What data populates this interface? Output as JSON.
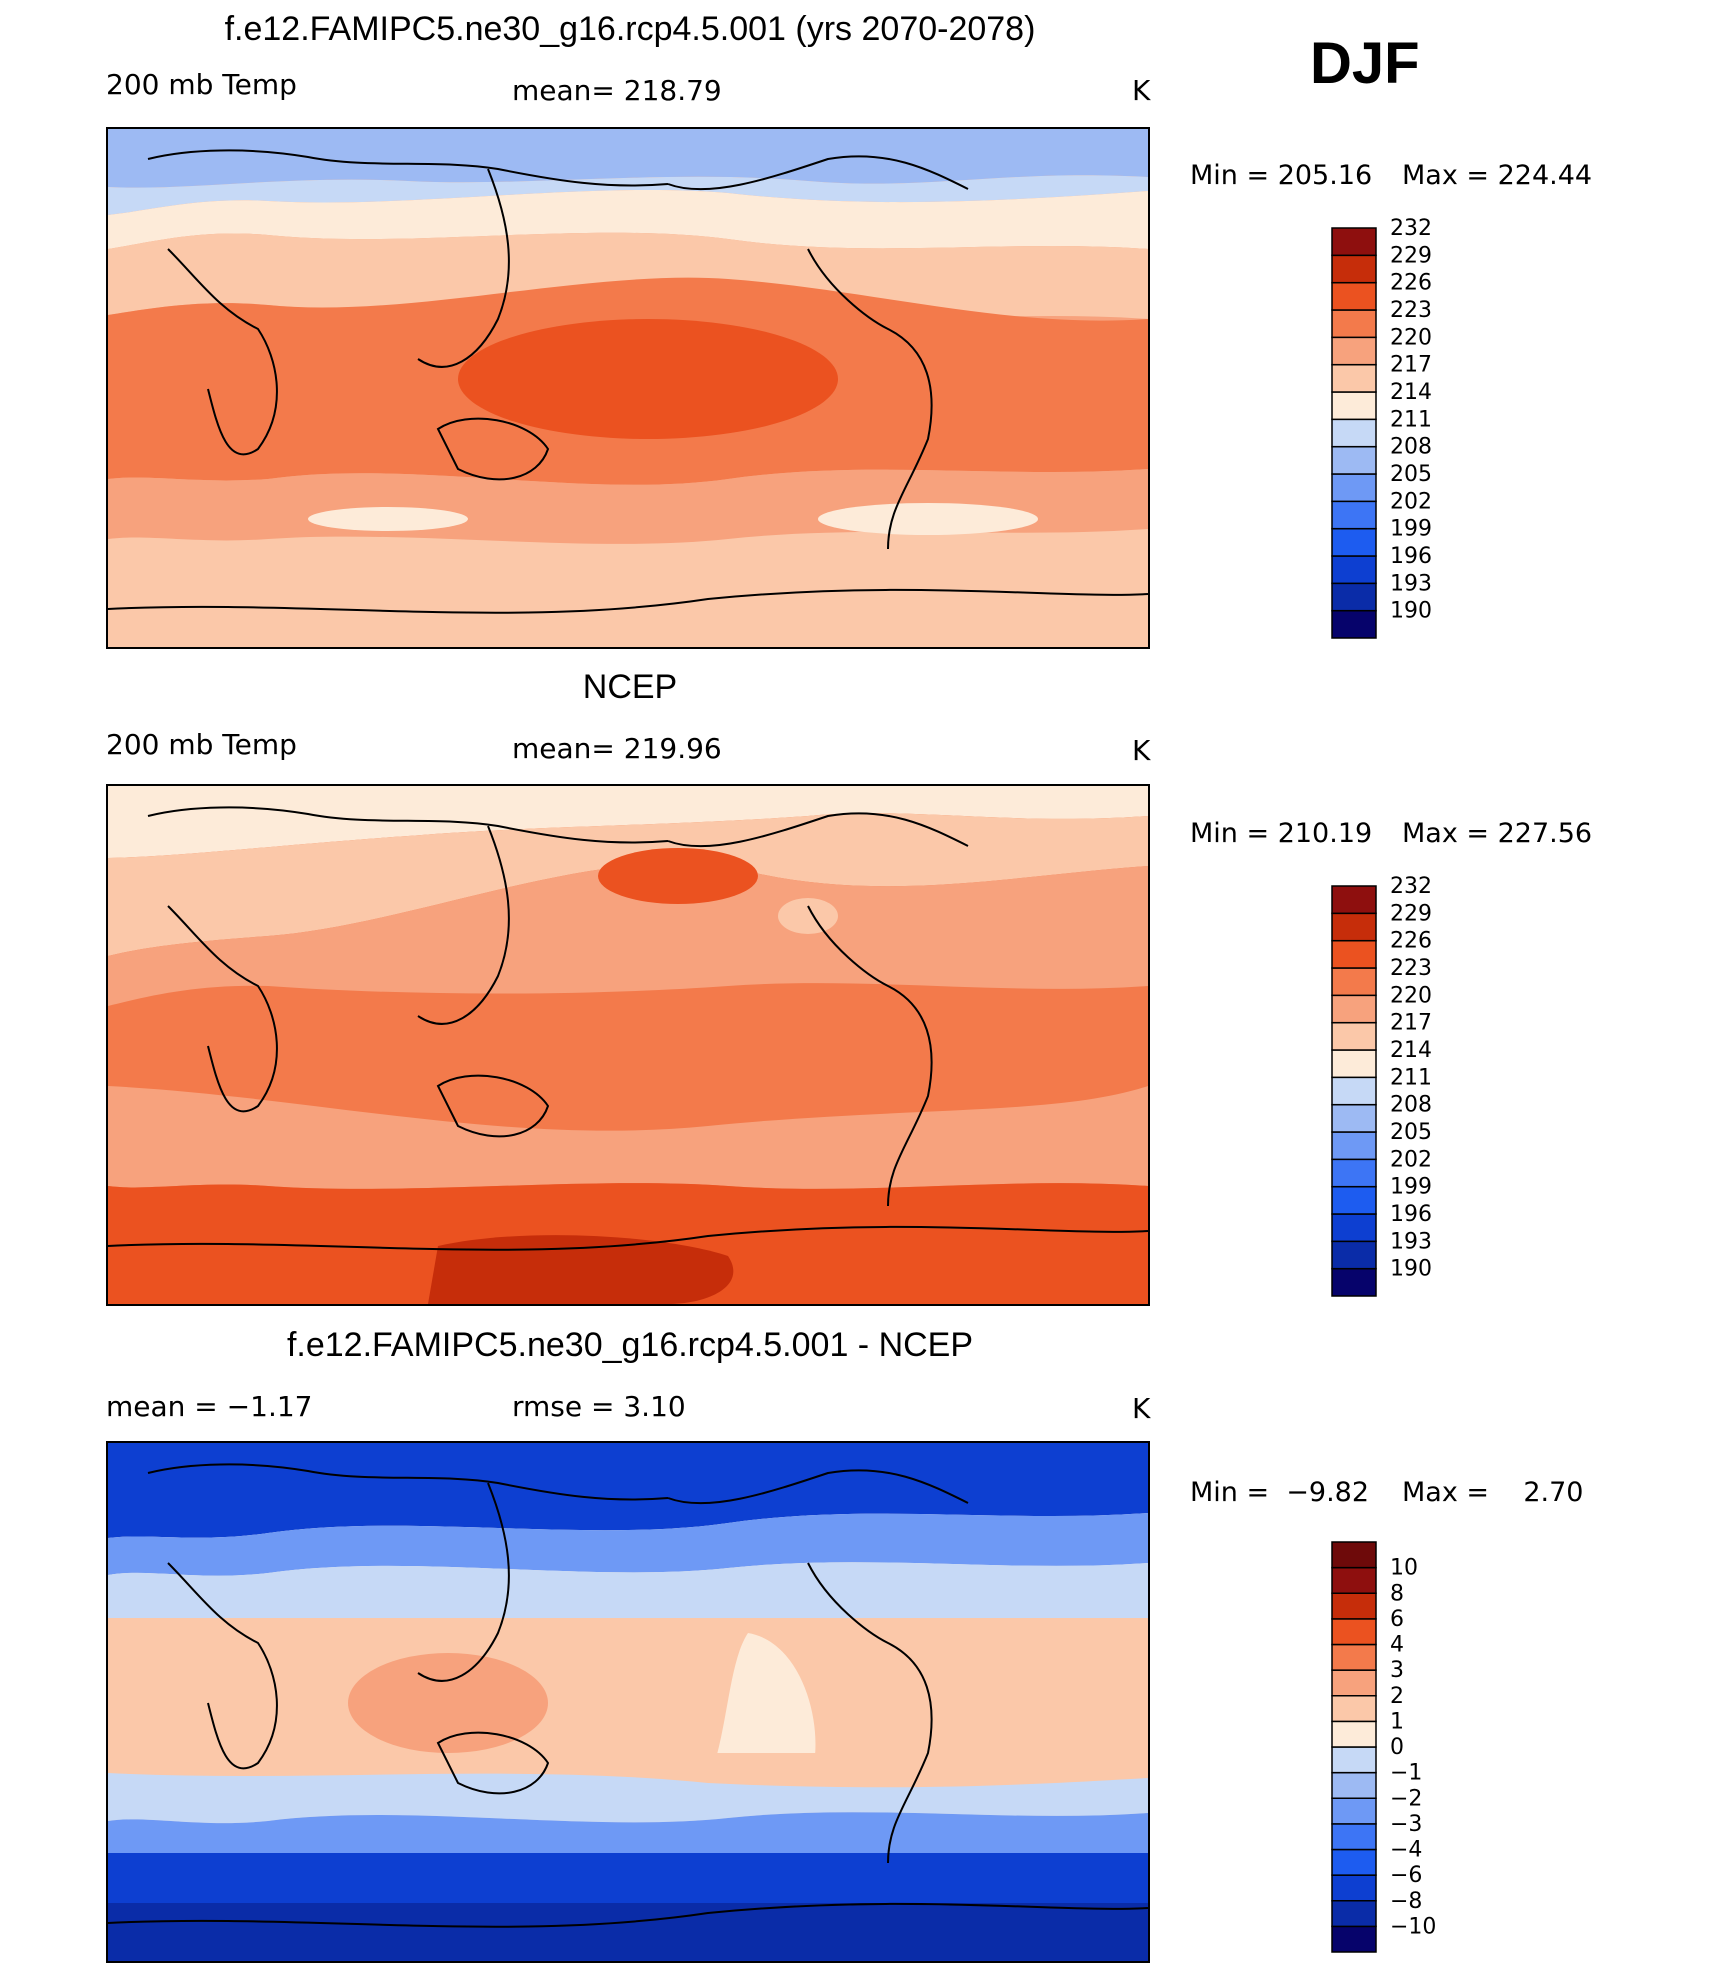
{
  "panels": [
    {
      "title": "f.e12.FAMIPC5.ne30_g16.rcp4.5.001 (yrs 2070-2078)",
      "left_label": "200 mb Temp",
      "center_label": "mean= 218.79",
      "units": "K",
      "min_label": "Min = 205.16",
      "max_label": "Max = 224.44",
      "colorbar": {
        "colors": [
          "#06036b",
          "#0a2ca8",
          "#0d3fd1",
          "#1d5cf0",
          "#3d75f5",
          "#6e99f5",
          "#9dbaf3",
          "#c6d9f6",
          "#fdebd9",
          "#fbc8a9",
          "#f7a27d",
          "#f37a4b",
          "#eb5220",
          "#c62d0a",
          "#8e0f0e"
        ],
        "ticks": [
          "190",
          "193",
          "196",
          "199",
          "202",
          "205",
          "208",
          "211",
          "214",
          "217",
          "220",
          "223",
          "226",
          "229",
          "232"
        ]
      }
    },
    {
      "title": "NCEP",
      "left_label": "200 mb Temp",
      "center_label": "mean= 219.96",
      "units": "K",
      "min_label": "Min = 210.19",
      "max_label": "Max = 227.56",
      "colorbar": {
        "colors": [
          "#06036b",
          "#0a2ca8",
          "#0d3fd1",
          "#1d5cf0",
          "#3d75f5",
          "#6e99f5",
          "#9dbaf3",
          "#c6d9f6",
          "#fdebd9",
          "#fbc8a9",
          "#f7a27d",
          "#f37a4b",
          "#eb5220",
          "#c62d0a",
          "#8e0f0e"
        ],
        "ticks": [
          "190",
          "193",
          "196",
          "199",
          "202",
          "205",
          "208",
          "211",
          "214",
          "217",
          "220",
          "223",
          "226",
          "229",
          "232"
        ]
      }
    },
    {
      "title": "f.e12.FAMIPC5.ne30_g16.rcp4.5.001 - NCEP",
      "left_label": "mean =   −1.17",
      "center_label": "rmse =    3.10",
      "units": "K",
      "min_label": "Min =  −9.82",
      "max_label": "Max =    2.70",
      "colorbar": {
        "colors": [
          "#06036b",
          "#0a2ca8",
          "#0d3fd1",
          "#1d5cf0",
          "#3d75f5",
          "#6e99f5",
          "#9dbaf3",
          "#c6d9f6",
          "#fdebd9",
          "#fbc8a9",
          "#f7a27d",
          "#f37a4b",
          "#eb5220",
          "#c62d0a",
          "#8e0f0e",
          "#6e0a0a"
        ],
        "ticks": [
          "−10",
          "−8",
          "−6",
          "−4",
          "−3",
          "−2",
          "−1",
          "0",
          "1",
          "2",
          "3",
          "4",
          "6",
          "8",
          "10"
        ]
      }
    }
  ],
  "season": "DJF"
}
